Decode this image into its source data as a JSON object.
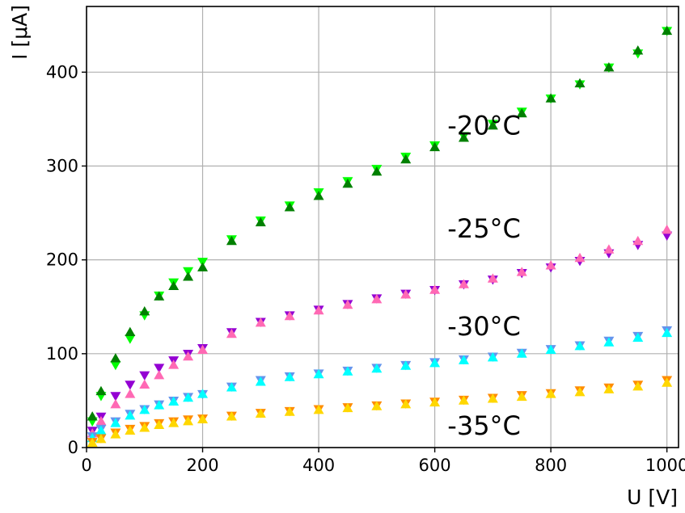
{
  "chart_data": {
    "type": "scatter",
    "xlabel": "U [V]",
    "ylabel": "I [μA]",
    "xlim": [
      0,
      1020
    ],
    "ylim": [
      0,
      470
    ],
    "xticks": [
      0,
      200,
      400,
      600,
      800,
      1000
    ],
    "yticks": [
      0,
      100,
      200,
      300,
      400
    ],
    "grid": true,
    "annotations": [
      {
        "text": "-20°C",
        "x": 810,
        "y": 344
      },
      {
        "text": "-25°C",
        "x": 810,
        "y": 234
      },
      {
        "text": "-30°C",
        "x": 810,
        "y": 130
      },
      {
        "text": "-35°C",
        "x": 810,
        "y": 24
      }
    ],
    "series": [
      {
        "marker": "triangle-down",
        "color": "#00ff00",
        "x": [
          10,
          25,
          50,
          75,
          100,
          125,
          150,
          175,
          200,
          250,
          300,
          350,
          400,
          450,
          500,
          550,
          600,
          650,
          700,
          750,
          800,
          850,
          900,
          950,
          1000
        ],
        "y": [
          28,
          55,
          88,
          116,
          141,
          162,
          176,
          188,
          198,
          222,
          242,
          258,
          272,
          284,
          297,
          310,
          322,
          332,
          345,
          358,
          372,
          387,
          405,
          420,
          444
        ]
      },
      {
        "marker": "triangle-up",
        "color": "#008000",
        "x": [
          10,
          25,
          50,
          75,
          100,
          125,
          150,
          175,
          200,
          250,
          300,
          350,
          400,
          450,
          500,
          550,
          600,
          650,
          700,
          750,
          800,
          850,
          900,
          950,
          1000
        ],
        "y": [
          33,
          60,
          95,
          123,
          145,
          161,
          172,
          182,
          192,
          220,
          240,
          256,
          268,
          281,
          294,
          307,
          320,
          330,
          343,
          356,
          372,
          388,
          405,
          423,
          444
        ]
      },
      {
        "marker": "triangle-down",
        "color": "#9400d3",
        "x": [
          10,
          25,
          50,
          75,
          100,
          125,
          150,
          175,
          200,
          250,
          300,
          350,
          400,
          450,
          500,
          550,
          600,
          650,
          700,
          750,
          800,
          850,
          900,
          950,
          1000
        ],
        "y": [
          18,
          33,
          55,
          67,
          77,
          85,
          93,
          100,
          106,
          123,
          134,
          141,
          147,
          153,
          159,
          164,
          168,
          174,
          179,
          186,
          192,
          199,
          207,
          216,
          226
        ]
      },
      {
        "marker": "triangle-up",
        "color": "#ff69b4",
        "x": [
          10,
          25,
          50,
          75,
          100,
          125,
          150,
          175,
          200,
          250,
          300,
          350,
          400,
          450,
          500,
          550,
          600,
          650,
          700,
          750,
          800,
          850,
          900,
          950,
          1000
        ],
        "y": [
          15,
          28,
          46,
          57,
          67,
          77,
          88,
          97,
          104,
          121,
          133,
          140,
          146,
          152,
          158,
          163,
          168,
          174,
          180,
          187,
          194,
          202,
          211,
          220,
          232
        ]
      },
      {
        "marker": "triangle-down",
        "color": "#6495ed",
        "x": [
          10,
          25,
          50,
          75,
          100,
          125,
          150,
          175,
          200,
          250,
          300,
          350,
          400,
          450,
          500,
          550,
          600,
          650,
          700,
          750,
          800,
          850,
          900,
          950,
          1000
        ],
        "y": [
          12,
          20,
          28,
          36,
          41,
          46,
          50,
          54,
          57,
          65,
          72,
          76,
          79,
          82,
          85,
          88,
          91,
          94,
          97,
          101,
          105,
          109,
          114,
          119,
          125
        ]
      },
      {
        "marker": "triangle-up",
        "color": "#00ffff",
        "x": [
          10,
          25,
          50,
          75,
          100,
          125,
          150,
          175,
          200,
          250,
          300,
          350,
          400,
          450,
          500,
          550,
          600,
          650,
          700,
          750,
          800,
          850,
          900,
          950,
          1000
        ],
        "y": [
          10,
          18,
          26,
          34,
          40,
          45,
          49,
          53,
          57,
          64,
          70,
          75,
          78,
          81,
          84,
          87,
          90,
          93,
          96,
          100,
          104,
          108,
          112,
          117,
          122
        ]
      },
      {
        "marker": "triangle-down",
        "color": "#ff8c00",
        "x": [
          10,
          25,
          50,
          75,
          100,
          125,
          150,
          175,
          200,
          250,
          300,
          350,
          400,
          450,
          500,
          550,
          600,
          650,
          700,
          750,
          800,
          850,
          900,
          950,
          1000
        ],
        "y": [
          6,
          10,
          16,
          20,
          23,
          26,
          28,
          30,
          31,
          34,
          37,
          39,
          41,
          43,
          45,
          47,
          49,
          51,
          53,
          56,
          58,
          61,
          64,
          67,
          72
        ]
      },
      {
        "marker": "triangle-up",
        "color": "#ffd700",
        "x": [
          10,
          25,
          50,
          75,
          100,
          125,
          150,
          175,
          200,
          250,
          300,
          350,
          400,
          450,
          500,
          550,
          600,
          650,
          700,
          750,
          800,
          850,
          900,
          950,
          1000
        ],
        "y": [
          5,
          9,
          14,
          18,
          21,
          24,
          26,
          28,
          30,
          33,
          36,
          38,
          40,
          42,
          44,
          46,
          48,
          50,
          52,
          54,
          57,
          59,
          62,
          65,
          69
        ]
      }
    ]
  }
}
